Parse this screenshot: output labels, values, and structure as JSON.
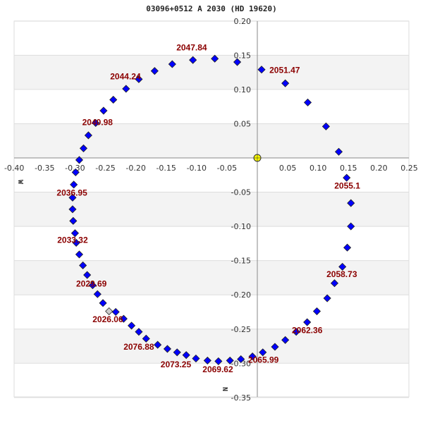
{
  "title": "03096+0512 A  2030 (HD 19620)",
  "chart_data": {
    "type": "scatter",
    "title": "03096+0512 A  2030 (HD 19620)",
    "xlabel": "W",
    "ylabel": "N",
    "xlim": [
      -0.4,
      0.25
    ],
    "ylim": [
      -0.35,
      0.2
    ],
    "x_ticks": [
      "-0.40",
      "-0.35",
      "-0.30",
      "-0.25",
      "-0.20",
      "-0.15",
      "-0.10",
      "-0.05",
      "0.05",
      "0.10",
      "0.15",
      "0.20",
      "0.25"
    ],
    "y_ticks": [
      "0.20",
      "0.15",
      "0.10",
      "0.05",
      "-0.05",
      "-0.10",
      "-0.15",
      "-0.20",
      "-0.25",
      "-0.30",
      "-0.35"
    ],
    "grid": "alternating horizontal bands",
    "primary": {
      "x": 0.0,
      "y": 0.0,
      "color": "#ffff00"
    },
    "highlight_point": {
      "x": -0.244,
      "y": -0.224,
      "color": "#cccccc"
    },
    "series": [
      {
        "name": "orbit",
        "color": "#0000ff",
        "points": [
          [
            0.007,
            0.129
          ],
          [
            0.046,
            0.109
          ],
          [
            0.083,
            0.081
          ],
          [
            0.113,
            0.046
          ],
          [
            0.134,
            0.009
          ],
          [
            0.147,
            -0.029
          ],
          [
            0.154,
            -0.066
          ],
          [
            0.154,
            -0.1
          ],
          [
            0.148,
            -0.131
          ],
          [
            0.14,
            -0.159
          ],
          [
            0.127,
            -0.183
          ],
          [
            0.115,
            -0.205
          ],
          [
            0.098,
            -0.224
          ],
          [
            0.082,
            -0.24
          ],
          [
            0.064,
            -0.254
          ],
          [
            0.046,
            -0.266
          ],
          [
            0.029,
            -0.276
          ],
          [
            0.009,
            -0.284
          ],
          [
            -0.008,
            -0.29
          ],
          [
            -0.027,
            -0.294
          ],
          [
            -0.045,
            -0.296
          ],
          [
            -0.064,
            -0.297
          ],
          [
            -0.082,
            -0.296
          ],
          [
            -0.101,
            -0.293
          ],
          [
            -0.117,
            -0.288
          ],
          [
            -0.132,
            -0.284
          ],
          [
            -0.148,
            -0.279
          ],
          [
            -0.164,
            -0.273
          ],
          [
            -0.183,
            -0.264
          ],
          [
            -0.195,
            -0.254
          ],
          [
            -0.207,
            -0.245
          ],
          [
            -0.22,
            -0.235
          ],
          [
            -0.233,
            -0.225
          ],
          [
            -0.254,
            -0.212
          ],
          [
            -0.263,
            -0.199
          ],
          [
            -0.271,
            -0.186
          ],
          [
            -0.28,
            -0.171
          ],
          [
            -0.287,
            -0.157
          ],
          [
            -0.293,
            -0.141
          ],
          [
            -0.298,
            -0.124
          ],
          [
            -0.3,
            -0.11
          ],
          [
            -0.303,
            -0.092
          ],
          [
            -0.304,
            -0.075
          ],
          [
            -0.304,
            -0.058
          ],
          [
            -0.302,
            -0.039
          ],
          [
            -0.299,
            -0.021
          ],
          [
            -0.293,
            -0.003
          ],
          [
            -0.286,
            0.014
          ],
          [
            -0.278,
            0.033
          ],
          [
            -0.266,
            0.051
          ],
          [
            -0.253,
            0.069
          ],
          [
            -0.237,
            0.085
          ],
          [
            -0.216,
            0.101
          ],
          [
            -0.195,
            0.115
          ],
          [
            -0.169,
            0.127
          ],
          [
            -0.14,
            0.137
          ],
          [
            -0.106,
            0.143
          ],
          [
            -0.07,
            0.145
          ],
          [
            -0.033,
            0.14
          ]
        ]
      }
    ],
    "annotations": [
      {
        "text": "2047.84",
        "x": -0.108,
        "y": 0.157
      },
      {
        "text": "2044.24",
        "x": -0.217,
        "y": 0.115
      },
      {
        "text": "2040.98",
        "x": -0.263,
        "y": 0.048
      },
      {
        "text": "2036.95",
        "x": -0.305,
        "y": -0.055
      },
      {
        "text": "2033.32",
        "x": -0.304,
        "y": -0.124
      },
      {
        "text": "2029.69",
        "x": -0.273,
        "y": -0.188
      },
      {
        "text": "2026.06",
        "x": -0.246,
        "y": -0.24
      },
      {
        "text": "2076.88",
        "x": -0.195,
        "y": -0.28
      },
      {
        "text": "2073.25",
        "x": -0.134,
        "y": -0.306
      },
      {
        "text": "2069.62",
        "x": -0.065,
        "y": -0.313
      },
      {
        "text": "2065.99",
        "x": 0.01,
        "y": -0.299
      },
      {
        "text": "2062.36",
        "x": 0.082,
        "y": -0.256
      },
      {
        "text": "2058.73",
        "x": 0.139,
        "y": -0.174
      },
      {
        "text": "2055.1",
        "x": 0.148,
        "y": -0.045
      },
      {
        "text": "2051.47",
        "x": 0.045,
        "y": 0.124
      }
    ]
  },
  "colors": {
    "point": "#0000ff",
    "label": "#8b0000",
    "band": "#f3f3f3",
    "axis": "#888888"
  }
}
